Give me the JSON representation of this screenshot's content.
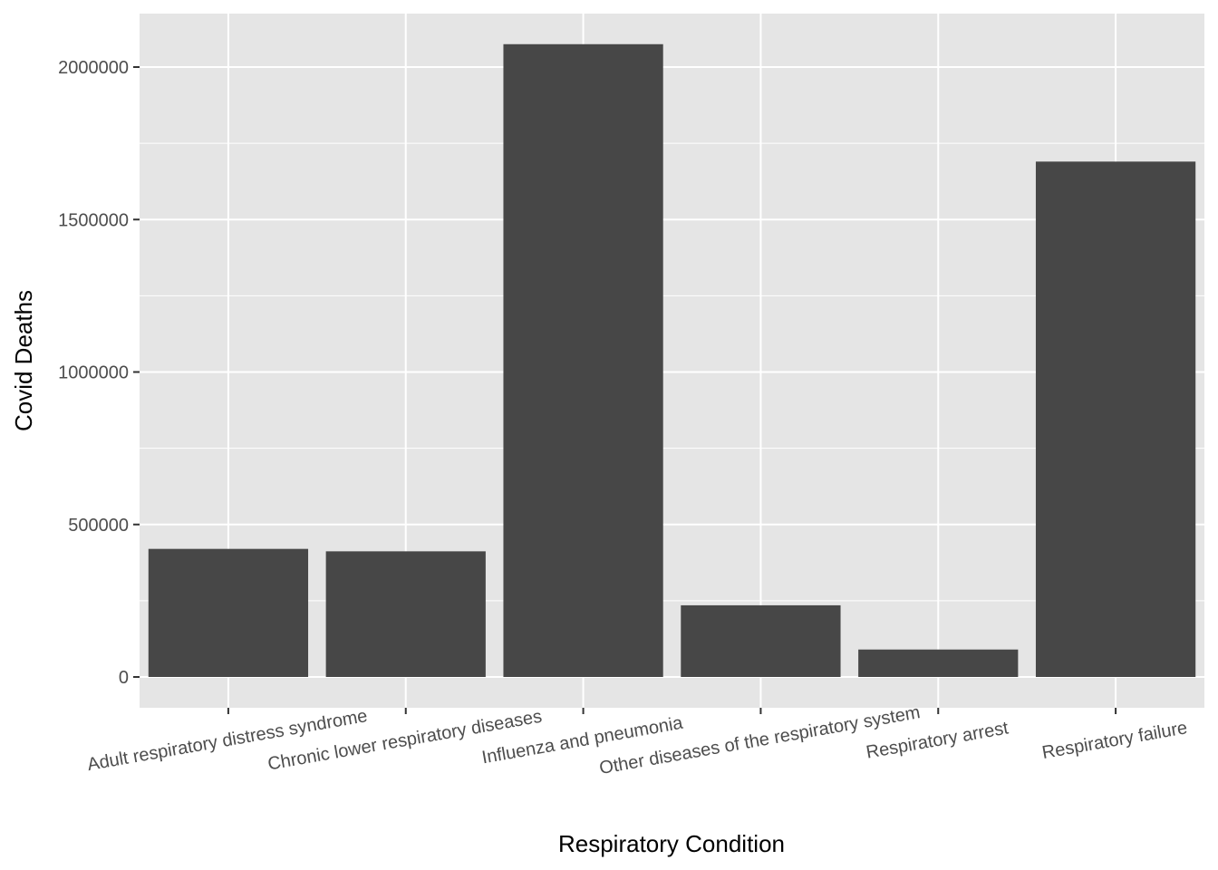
{
  "chart_data": {
    "type": "bar",
    "categories": [
      "Adult respiratory distress syndrome",
      "Chronic lower respiratory diseases",
      "Influenza and pneumonia",
      "Other diseases of the respiratory system",
      "Respiratory arrest",
      "Respiratory failure"
    ],
    "values": [
      420000,
      412000,
      2075000,
      235000,
      90000,
      1690000
    ],
    "xlabel": "Respiratory Condition",
    "ylabel": "Covid Deaths",
    "ylim": [
      -100000,
      2175000
    ],
    "yticks": [
      0,
      500000,
      1000000,
      1500000,
      2000000
    ],
    "ytick_labels": [
      "0",
      "500000",
      "1000000",
      "1500000",
      "2000000"
    ],
    "grid": true,
    "legend": "none",
    "colors": {
      "bar": "#474747",
      "panel": "#e5e5e5",
      "grid": "#ffffff",
      "tick": "#333333"
    }
  }
}
